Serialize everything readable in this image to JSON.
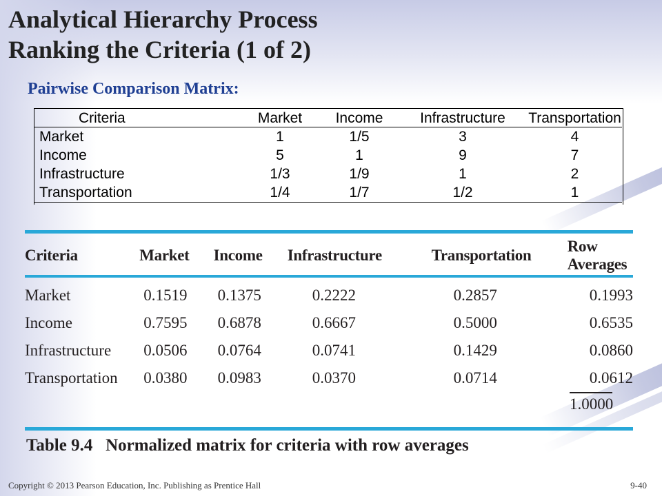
{
  "slide": {
    "title_line1": "Analytical Hierarchy Process",
    "title_line2": "Ranking the Criteria (1 of 2)",
    "subtitle": "Pairwise Comparison Matrix:"
  },
  "pairwise": {
    "headers": [
      "Criteria",
      "Market",
      "Income",
      "Infrastructure",
      "Transportation"
    ],
    "rows": [
      [
        "Market",
        "1",
        "1/5",
        "3",
        "4"
      ],
      [
        "Income",
        "5",
        "1",
        "9",
        "7"
      ],
      [
        "Infrastructure",
        "1/3",
        "1/9",
        "1",
        "2"
      ],
      [
        "Transportation",
        "1/4",
        "1/7",
        "1/2",
        "1"
      ]
    ]
  },
  "normalized": {
    "headers": [
      "Criteria",
      "Market",
      "Income",
      "Infrastructure",
      "Transportation",
      "Row Averages"
    ],
    "rows": [
      [
        "Market",
        "0.1519",
        "0.1375",
        "0.2222",
        "0.2857",
        "0.1993"
      ],
      [
        "Income",
        "0.7595",
        "0.6878",
        "0.6667",
        "0.5000",
        "0.6535"
      ],
      [
        "Infrastructure",
        "0.0506",
        "0.0764",
        "0.0741",
        "0.1429",
        "0.0860"
      ],
      [
        "Transportation",
        "0.0380",
        "0.0983",
        "0.0370",
        "0.0714",
        "0.0612"
      ]
    ],
    "total": "1.0000"
  },
  "caption": {
    "label": "Table 9.4",
    "text": "Normalized matrix for criteria with row averages"
  },
  "footer": {
    "copyright": "Copyright © 2013 Pearson Education, Inc. Publishing as Prentice Hall",
    "slide_number": "9-40"
  },
  "colors": {
    "accent_rule": "#29a8d8",
    "subtitle": "#1f3f93"
  }
}
